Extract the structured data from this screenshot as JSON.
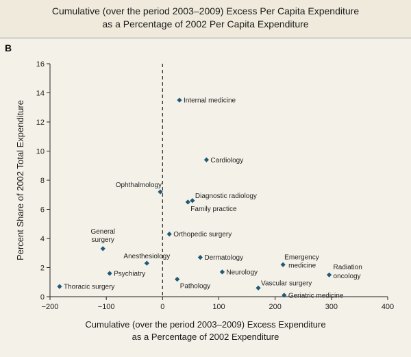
{
  "header": {
    "line1": "Cumulative (over the period 2003–2009) Excess Per Capita Expenditure",
    "line2": "as a Percentage of 2002 Per Capita Expenditure"
  },
  "panel_label": "B",
  "colors": {
    "marker": "#1f5a78",
    "background": "#f4f1e8",
    "header_bg": "#efeadc"
  },
  "chart_data": {
    "type": "scatter",
    "xlabel": [
      "Cumulative (over the period 2003–2009) Excess Expenditure",
      "as a Percentage of 2002 Expenditure"
    ],
    "ylabel": "Percent Share of 2002 Total Expenditure",
    "xlim": [
      -200,
      400
    ],
    "ylim": [
      0,
      16
    ],
    "xticks": [
      -200,
      -100,
      0,
      100,
      200,
      300,
      400
    ],
    "yticks": [
      0,
      2,
      4,
      6,
      8,
      10,
      12,
      14,
      16
    ],
    "reference_line": {
      "x": 0,
      "style": "dashed"
    },
    "grid": false,
    "points": [
      {
        "label": "Internal medicine",
        "x": 30,
        "y": 13.5,
        "anchor": "right"
      },
      {
        "label": "Cardiology",
        "x": 78,
        "y": 9.4,
        "anchor": "right"
      },
      {
        "label": "Ophthalmology",
        "x": -4,
        "y": 7.2,
        "anchor": "above-left"
      },
      {
        "label": "Diagnostic radiology",
        "x": 53,
        "y": 6.6,
        "anchor": "above-right"
      },
      {
        "label": "Family practice",
        "x": 45,
        "y": 6.5,
        "anchor": "below-right"
      },
      {
        "label": "Orthopedic surgery",
        "x": 12,
        "y": 4.3,
        "anchor": "right"
      },
      {
        "label": "General surgery",
        "x": -106,
        "y": 3.3,
        "anchor": "above"
      },
      {
        "label": "Anesthesiology",
        "x": -28,
        "y": 2.3,
        "anchor": "above"
      },
      {
        "label": "Dermatology",
        "x": 67,
        "y": 2.7,
        "anchor": "right"
      },
      {
        "label": "Emergency medicine",
        "x": 214,
        "y": 2.2,
        "anchor": "above-right"
      },
      {
        "label": "Radiation oncology",
        "x": 296,
        "y": 1.5,
        "anchor": "right"
      },
      {
        "label": "Psychiatry",
        "x": -94,
        "y": 1.6,
        "anchor": "right"
      },
      {
        "label": "Neurology",
        "x": 106,
        "y": 1.7,
        "anchor": "right"
      },
      {
        "label": "Pathology",
        "x": 26,
        "y": 1.2,
        "anchor": "below-right"
      },
      {
        "label": "Vascular surgery",
        "x": 170,
        "y": 0.6,
        "anchor": "above-right"
      },
      {
        "label": "Thoracic surgery",
        "x": -183,
        "y": 0.7,
        "anchor": "right"
      },
      {
        "label": "Geriatric medicine",
        "x": 216,
        "y": 0.1,
        "anchor": "right"
      }
    ]
  }
}
